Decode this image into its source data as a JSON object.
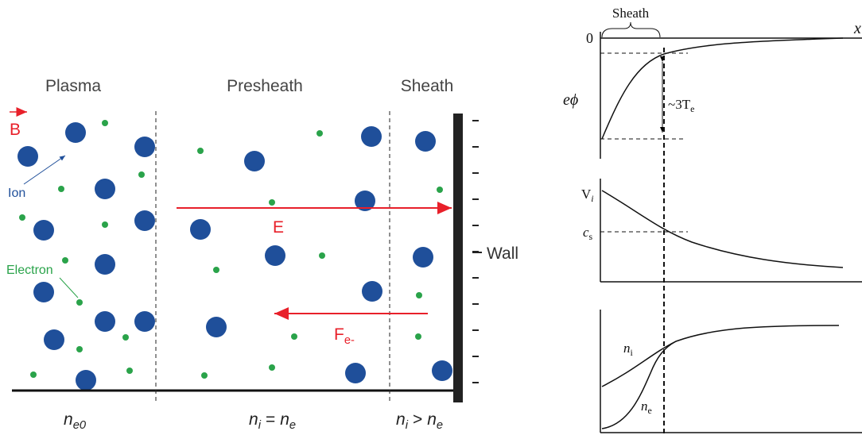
{
  "left": {
    "regions": {
      "plasma": "Plasma",
      "presheath": "Presheath",
      "sheath": "Sheath"
    },
    "field_b": "B",
    "ion": "Ion",
    "electron": "Electron",
    "field_e": "E",
    "force": {
      "main": "F",
      "sub": "e-"
    },
    "wall": "Wall",
    "densities": {
      "plasma": {
        "main": "n",
        "sub": "e0"
      },
      "presheath": {
        "left": {
          "main": "n",
          "sub": "i"
        },
        "relation": "=",
        "right": {
          "main": "n",
          "sub": "e"
        }
      },
      "sheath": {
        "left": {
          "main": "n",
          "sub": "i"
        },
        "relation": ">",
        "right": {
          "main": "n",
          "sub": "e"
        }
      }
    }
  },
  "right": {
    "sheath": "Sheath",
    "zero": "0",
    "x_axis": "x",
    "potential": "eϕ",
    "drop": {
      "main": "~3T",
      "sub": "e"
    },
    "velocity": {
      "main": "V",
      "sub": "i"
    },
    "sound_speed": {
      "main": "c",
      "sub": "s"
    },
    "ion_density": {
      "main": "n",
      "sub": "i"
    },
    "electron_density": {
      "main": "n",
      "sub": "e"
    }
  }
}
